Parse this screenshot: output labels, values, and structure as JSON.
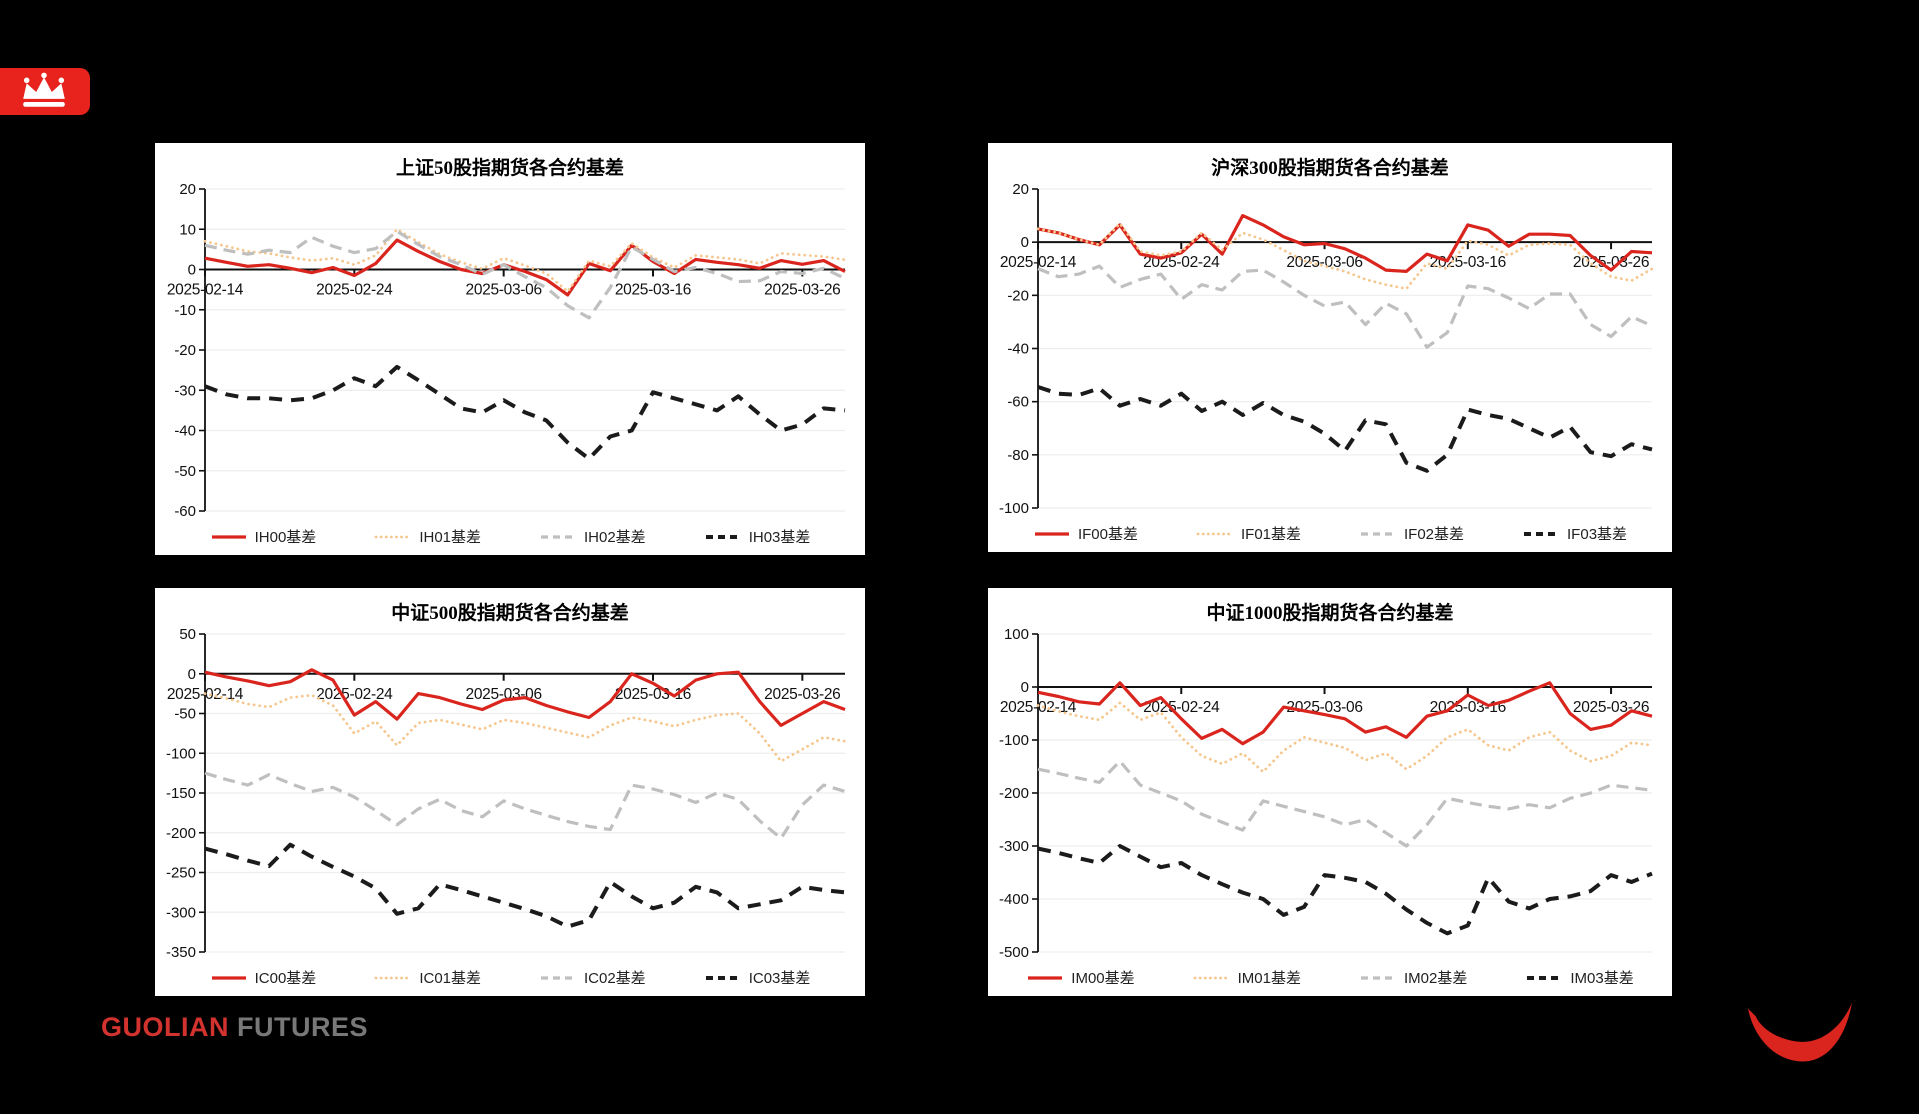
{
  "page": {
    "background": "#000000"
  },
  "logo": {
    "icon": "crown-icon",
    "badge_color": "#e8231e",
    "crown_color": "#ffffff"
  },
  "footer": {
    "brand_red": "GUOLIAN",
    "brand_gray": "FUTURES",
    "brand_red_color": "#d2332e",
    "brand_gray_color": "#787878"
  },
  "footer_logo": {
    "icon": "red-crescent-icon",
    "color": "#d9251d"
  },
  "colors": {
    "series_solid": "#d9251d",
    "series_dotted": "#f5c78e",
    "series_dashed": "#bfbfbf",
    "series_dashed_bold": "#1b1b1b",
    "grid": "#ededed",
    "axis": "#111111",
    "panel_bg": "#ffffff"
  },
  "chart_data": [
    {
      "type": "line",
      "title": "上证50股指期货各合约基差",
      "x_tick_labels": [
        "2025-02-14",
        "2025-02-24",
        "2025-03-06",
        "2025-03-16",
        "2025-03-26"
      ],
      "x_tick_indices": [
        0,
        7,
        14,
        21,
        28
      ],
      "n_points": 31,
      "ylim": [
        -60,
        20
      ],
      "y_step": 10,
      "grid": true,
      "legend_position": "bottom",
      "series": [
        {
          "name": "IH00基差",
          "style": "solid",
          "color": "#d9251d",
          "values": [
            2.8,
            1.8,
            0.8,
            1.2,
            0.3,
            -0.8,
            0.5,
            -1.5,
            1.5,
            7.3,
            4.5,
            2.0,
            0.0,
            -1.0,
            1.2,
            -0.5,
            -2.5,
            -6.3,
            1.5,
            -0.3,
            6.0,
            2.0,
            -1.0,
            2.5,
            1.8,
            1.2,
            0.3,
            2.2,
            1.3,
            2.2,
            -0.5
          ]
        },
        {
          "name": "IH01基差",
          "style": "dotted",
          "color": "#f5c78e",
          "values": [
            7.0,
            5.8,
            4.5,
            4.0,
            3.0,
            2.2,
            2.8,
            1.2,
            3.5,
            10.0,
            6.8,
            3.8,
            1.8,
            0.2,
            2.8,
            1.0,
            -1.0,
            -5.5,
            2.2,
            0.8,
            6.5,
            3.0,
            0.5,
            3.5,
            3.0,
            2.5,
            1.5,
            4.0,
            3.6,
            3.2,
            2.4
          ]
        },
        {
          "name": "IH02基差",
          "style": "dashed",
          "color": "#bfbfbf",
          "values": [
            6.0,
            4.8,
            3.8,
            4.8,
            4.2,
            8.0,
            5.8,
            4.2,
            5.2,
            9.5,
            6.2,
            3.2,
            1.2,
            -1.2,
            1.2,
            -1.8,
            -4.5,
            -9.0,
            -12.0,
            -4.5,
            5.6,
            2.5,
            -0.5,
            0.5,
            -1.0,
            -3.0,
            -2.8,
            -0.5,
            -1.0,
            0.3,
            -2.2
          ]
        },
        {
          "name": "IH03基差",
          "style": "dashed-bold",
          "color": "#1b1b1b",
          "values": [
            -29,
            -31,
            -32,
            -32,
            -32.5,
            -32,
            -30,
            -27,
            -29,
            -24.2,
            -27.5,
            -31,
            -34.5,
            -35.5,
            -32.5,
            -35.5,
            -37.5,
            -43,
            -47,
            -41.5,
            -40,
            -30.5,
            -32,
            -33.5,
            -35,
            -31.5,
            -36,
            -40,
            -38.5,
            -34.5,
            -35
          ]
        }
      ]
    },
    {
      "type": "line",
      "title": "沪深300股指期货各合约基差",
      "x_tick_labels": [
        "2025-02-14",
        "2025-02-24",
        "2025-03-06",
        "2025-03-16",
        "2025-03-26"
      ],
      "x_tick_indices": [
        0,
        7,
        14,
        21,
        28
      ],
      "n_points": 31,
      "ylim": [
        -100,
        20
      ],
      "y_step": 20,
      "grid": true,
      "legend_position": "bottom",
      "series": [
        {
          "name": "IF00基差",
          "style": "solid",
          "color": "#d9251d",
          "values": [
            5,
            3.5,
            1,
            -1,
            6.5,
            -4.5,
            -6,
            -4,
            3,
            -4.5,
            10,
            6.5,
            2,
            -1,
            -0.5,
            -2.5,
            -6,
            -10.5,
            -11,
            -4.5,
            -7,
            6.5,
            4.5,
            -1.5,
            3,
            3,
            2.5,
            -5,
            -10.5,
            -3.5,
            -4
          ]
        },
        {
          "name": "IF01基差",
          "style": "dotted",
          "color": "#f5c78e",
          "values": [
            5,
            3.5,
            1,
            -1,
            7,
            -3.5,
            -5,
            -3.5,
            3.5,
            -3,
            3.5,
            1,
            -3,
            -7,
            -9,
            -11,
            -14,
            -16,
            -17.5,
            -8,
            -10,
            0.5,
            -1,
            -5,
            -1,
            -0.5,
            -1,
            -8,
            -13,
            -14.5,
            -10
          ]
        },
        {
          "name": "IF02基差",
          "style": "dashed",
          "color": "#bfbfbf",
          "values": [
            -10,
            -13,
            -12,
            -9,
            -17,
            -14,
            -12,
            -21.5,
            -16,
            -18,
            -11,
            -10.5,
            -15,
            -20,
            -24,
            -22.5,
            -31,
            -23,
            -27,
            -39.5,
            -34,
            -16.5,
            -17.5,
            -21,
            -25,
            -19.5,
            -19.5,
            -31,
            -35.5,
            -28,
            -31.5
          ]
        },
        {
          "name": "IF03基差",
          "style": "dashed-bold",
          "color": "#1b1b1b",
          "values": [
            -54.5,
            -57,
            -57.5,
            -55,
            -61.5,
            -59,
            -61.5,
            -57,
            -63.5,
            -60,
            -65,
            -60.5,
            -65,
            -67.5,
            -72,
            -78.5,
            -67,
            -68.5,
            -83,
            -86,
            -80,
            -63,
            -65,
            -66.5,
            -70,
            -73.5,
            -69.5,
            -79,
            -80.5,
            -76,
            -78
          ]
        }
      ]
    },
    {
      "type": "line",
      "title": "中证500股指期货各合约基差",
      "x_tick_labels": [
        "2025-02-14",
        "2025-02-24",
        "2025-03-06",
        "2025-03-16",
        "2025-03-26"
      ],
      "x_tick_indices": [
        0,
        7,
        14,
        21,
        28
      ],
      "n_points": 31,
      "ylim": [
        -350,
        50
      ],
      "y_step": 50,
      "grid": true,
      "legend_position": "bottom",
      "series": [
        {
          "name": "IC00基差",
          "style": "solid",
          "color": "#d9251d",
          "values": [
            2,
            -4,
            -9,
            -15,
            -10,
            5,
            -8,
            -52,
            -35,
            -57,
            -25,
            -30,
            -38,
            -45,
            -33,
            -30,
            -40,
            -48,
            -55,
            -35,
            0,
            -12,
            -28,
            -8,
            0,
            2,
            -35,
            -65,
            -50,
            -35,
            -45
          ]
        },
        {
          "name": "IC01基差",
          "style": "dotted",
          "color": "#f5c78e",
          "values": [
            -25,
            -31,
            -38,
            -42,
            -30,
            -27,
            -40,
            -75,
            -60,
            -90,
            -62,
            -58,
            -64,
            -70,
            -58,
            -62,
            -68,
            -74,
            -80,
            -65,
            -55,
            -60,
            -66,
            -58,
            -52,
            -50,
            -75,
            -110,
            -95,
            -80,
            -85
          ]
        },
        {
          "name": "IC02基差",
          "style": "dashed",
          "color": "#bfbfbf",
          "values": [
            -125,
            -133,
            -140,
            -127,
            -138,
            -148,
            -143,
            -155,
            -172,
            -190,
            -170,
            -158,
            -172,
            -180,
            -160,
            -170,
            -178,
            -186,
            -192,
            -196,
            -140,
            -145,
            -152,
            -162,
            -150,
            -158,
            -185,
            -207,
            -165,
            -140,
            -148
          ]
        },
        {
          "name": "IC03基差",
          "style": "dashed-bold",
          "color": "#1b1b1b",
          "values": [
            -220,
            -227,
            -235,
            -242,
            -215,
            -230,
            -243,
            -255,
            -270,
            -302,
            -295,
            -265,
            -272,
            -280,
            -288,
            -296,
            -305,
            -318,
            -310,
            -262,
            -280,
            -295,
            -288,
            -268,
            -275,
            -295,
            -290,
            -285,
            -268,
            -272,
            -275
          ]
        }
      ]
    },
    {
      "type": "line",
      "title": "中证1000股指期货各合约基差",
      "x_tick_labels": [
        "2025-02-14",
        "2025-02-24",
        "2025-03-06",
        "2025-03-16",
        "2025-03-26"
      ],
      "x_tick_indices": [
        0,
        7,
        14,
        21,
        28
      ],
      "n_points": 31,
      "ylim": [
        -500,
        100
      ],
      "y_step": 100,
      "grid": true,
      "legend_position": "bottom",
      "series": [
        {
          "name": "IM00基差",
          "style": "solid",
          "color": "#d9251d",
          "values": [
            -10,
            -18,
            -28,
            -32,
            8,
            -35,
            -20,
            -60,
            -97,
            -80,
            -107,
            -85,
            -38,
            -45,
            -52,
            -60,
            -85,
            -75,
            -95,
            -55,
            -45,
            -15,
            -35,
            -25,
            -8,
            8,
            -50,
            -80,
            -72,
            -45,
            -55
          ]
        },
        {
          "name": "IM01基差",
          "style": "dotted",
          "color": "#f5c78e",
          "values": [
            -35,
            -46,
            -55,
            -62,
            -30,
            -62,
            -48,
            -95,
            -130,
            -145,
            -125,
            -160,
            -120,
            -95,
            -105,
            -115,
            -138,
            -125,
            -155,
            -130,
            -95,
            -80,
            -110,
            -120,
            -95,
            -85,
            -120,
            -140,
            -130,
            -105,
            -110
          ]
        },
        {
          "name": "IM02基差",
          "style": "dashed",
          "color": "#bfbfbf",
          "values": [
            -155,
            -163,
            -172,
            -180,
            -140,
            -185,
            -200,
            -215,
            -240,
            -255,
            -270,
            -215,
            -225,
            -235,
            -245,
            -260,
            -250,
            -275,
            -300,
            -260,
            -210,
            -218,
            -225,
            -230,
            -222,
            -228,
            -210,
            -200,
            -185,
            -190,
            -195
          ]
        },
        {
          "name": "IM03基差",
          "style": "dashed-bold",
          "color": "#1b1b1b",
          "values": [
            -305,
            -313,
            -323,
            -332,
            -300,
            -320,
            -340,
            -332,
            -355,
            -372,
            -388,
            -400,
            -430,
            -415,
            -355,
            -360,
            -368,
            -390,
            -420,
            -445,
            -465,
            -450,
            -360,
            -405,
            -418,
            -400,
            -395,
            -385,
            -355,
            -368,
            -352
          ]
        }
      ]
    }
  ]
}
